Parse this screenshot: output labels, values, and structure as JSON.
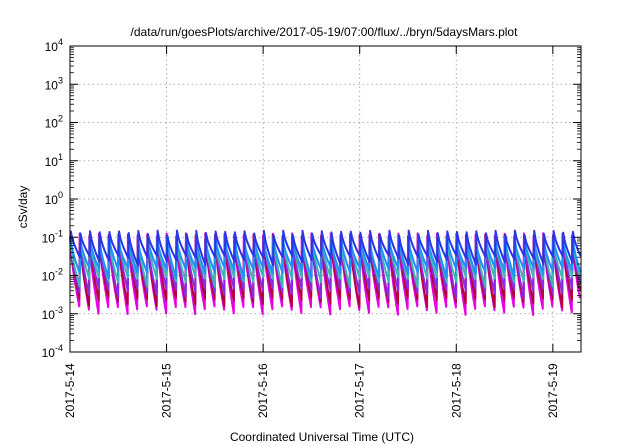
{
  "chart_data": {
    "type": "line",
    "title": "/data/run/goesPlots/archive/2017-05-19/07:00/flux/../bryn/5daysMars.plot",
    "xlabel": "Coordinated Universal Time (UTC)",
    "ylabel": "cSv/day",
    "yscale": "log",
    "ylim": [
      0.0001,
      10000
    ],
    "y_ticks": [
      {
        "value": 0.0001,
        "mant": "10",
        "exp": "-4"
      },
      {
        "value": 0.001,
        "mant": "10",
        "exp": "-3"
      },
      {
        "value": 0.01,
        "mant": "10",
        "exp": "-2"
      },
      {
        "value": 0.1,
        "mant": "10",
        "exp": "-1"
      },
      {
        "value": 1,
        "mant": "10",
        "exp": "0"
      },
      {
        "value": 10,
        "mant": "10",
        "exp": "1"
      },
      {
        "value": 100,
        "mant": "10",
        "exp": "2"
      },
      {
        "value": 1000,
        "mant": "10",
        "exp": "3"
      },
      {
        "value": 10000,
        "mant": "10",
        "exp": "4"
      }
    ],
    "xlim": [
      "2017-05-14",
      "2017-05-19T07:00"
    ],
    "x_ticks": [
      "2017-5-14",
      "2017-5-15",
      "2017-5-16",
      "2017-5-17",
      "2017-5-18",
      "2017-5-19"
    ],
    "grid": true,
    "pattern": {
      "cycles_per_day": 10,
      "comment_free": true
    },
    "series": [
      {
        "color": "#e600e6",
        "peak": 0.11,
        "trough": 0.0012
      },
      {
        "color": "#b3003d",
        "peak": 0.1,
        "trough": 0.002
      },
      {
        "color": "#8a2be2",
        "peak": 0.095,
        "trough": 0.0035
      },
      {
        "color": "#3fb6b6",
        "peak": 0.09,
        "trough": 0.007
      },
      {
        "color": "#1e90ff",
        "peak": 0.085,
        "trough": 0.012
      },
      {
        "color": "#2b35e8",
        "peak": 0.13,
        "trough": 0.025
      }
    ]
  }
}
